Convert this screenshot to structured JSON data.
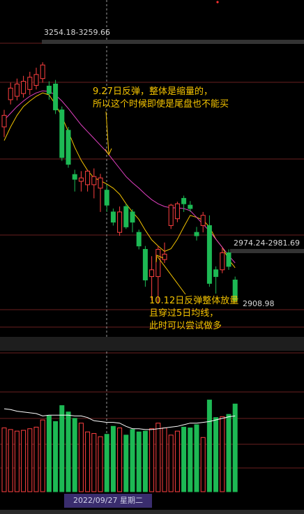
{
  "labels": {
    "high_range": "3254.18-3259.66",
    "right_range": "2974.24-2981.69",
    "low_value": "2908.98"
  },
  "annotations": {
    "a1_line1": "9.27日反弹，整体是缩量的，",
    "a1_line2": "所以这个时候即使是尾盘也不能买",
    "a2_line1": "10.12日反弹整体放量",
    "a2_line2": "且穿过5日均线，",
    "a2_line3": "此时可以尝试做多"
  },
  "crosshair_date": "2022/09/27 星期二",
  "colors": {
    "up": "#ff4040",
    "down": "#1db954",
    "ma5": "#f2c200",
    "ma10": "#e040c0",
    "vol_ma": "#ffffff",
    "grid": "#6a1f1f"
  },
  "chart_data": {
    "type": "candlestick",
    "y_axis": "price",
    "ylim": [
      2880,
      3290
    ],
    "candles": [
      {
        "o": 3165,
        "c": 3182,
        "h": 3190,
        "l": 3150
      },
      {
        "o": 3205,
        "c": 3222,
        "h": 3230,
        "l": 3198
      },
      {
        "o": 3210,
        "c": 3228,
        "h": 3236,
        "l": 3204
      },
      {
        "o": 3214,
        "c": 3232,
        "h": 3240,
        "l": 3208
      },
      {
        "o": 3220,
        "c": 3238,
        "h": 3246,
        "l": 3212
      },
      {
        "o": 3226,
        "c": 3242,
        "h": 3252,
        "l": 3220
      },
      {
        "o": 3236,
        "c": 3256,
        "h": 3260,
        "l": 3230
      },
      {
        "o": 3225,
        "c": 3214,
        "h": 3232,
        "l": 3205
      },
      {
        "o": 3228,
        "c": 3190,
        "h": 3234,
        "l": 3184
      },
      {
        "o": 3190,
        "c": 3120,
        "h": 3195,
        "l": 3115
      },
      {
        "o": 3160,
        "c": 3110,
        "h": 3165,
        "l": 3105
      },
      {
        "o": 3095,
        "c": 3088,
        "h": 3102,
        "l": 3070
      },
      {
        "o": 3085,
        "c": 3090,
        "h": 3100,
        "l": 3070
      },
      {
        "o": 3080,
        "c": 3100,
        "h": 3102,
        "l": 3070
      },
      {
        "o": 3080,
        "c": 3092,
        "h": 3104,
        "l": 3060
      },
      {
        "o": 3075,
        "c": 3090,
        "h": 3096,
        "l": 3040
      },
      {
        "o": 3072,
        "c": 3050,
        "h": 3080,
        "l": 3040
      },
      {
        "o": 3040,
        "c": 3025,
        "h": 3045,
        "l": 3020
      },
      {
        "o": 3010,
        "c": 3040,
        "h": 3048,
        "l": 3005
      },
      {
        "o": 3048,
        "c": 3018,
        "h": 3052,
        "l": 3015
      },
      {
        "o": 3040,
        "c": 3025,
        "h": 3044,
        "l": 3010
      },
      {
        "o": 3010,
        "c": 2990,
        "h": 3014,
        "l": 2985
      },
      {
        "o": 2985,
        "c": 2940,
        "h": 2990,
        "l": 2930
      },
      {
        "o": 2945,
        "c": 2955,
        "h": 2975,
        "l": 2910
      },
      {
        "o": 2945,
        "c": 2985,
        "h": 2990,
        "l": 2905
      },
      {
        "o": 2970,
        "c": 2978,
        "h": 2995,
        "l": 2965
      },
      {
        "o": 3020,
        "c": 3050,
        "h": 3052,
        "l": 3015
      },
      {
        "o": 3030,
        "c": 3052,
        "h": 3055,
        "l": 3025
      },
      {
        "o": 3060,
        "c": 3052,
        "h": 3064,
        "l": 3040
      },
      {
        "o": 3050,
        "c": 3045,
        "h": 3056,
        "l": 3040
      },
      {
        "o": 3010,
        "c": 3005,
        "h": 3018,
        "l": 2998
      },
      {
        "o": 3020,
        "c": 3035,
        "h": 3040,
        "l": 3010
      },
      {
        "o": 3020,
        "c": 2935,
        "h": 3035,
        "l": 2930
      },
      {
        "o": 2955,
        "c": 2945,
        "h": 2960,
        "l": 2920
      },
      {
        "o": 2955,
        "c": 2980,
        "h": 2988,
        "l": 2950
      },
      {
        "o": 2980,
        "c": 2960,
        "h": 2985,
        "l": 2955
      },
      {
        "o": 2940,
        "c": 2910,
        "h": 2945,
        "l": 2908
      }
    ],
    "ma5": [
      3145,
      3165,
      3182,
      3195,
      3203,
      3210,
      3215,
      3212,
      3198,
      3180,
      3158,
      3135,
      3116,
      3101,
      3090,
      3086,
      3081,
      3075,
      3066,
      3052,
      3040,
      3029,
      3013,
      2999,
      2990,
      2982,
      2986,
      3000,
      3018,
      3035,
      3032,
      3028,
      3018,
      3000,
      2988,
      2970,
      2958
    ],
    "ma10": [
      3175,
      3185,
      3195,
      3203,
      3210,
      3215,
      3218,
      3217,
      3212,
      3203,
      3192,
      3180,
      3168,
      3158,
      3148,
      3138,
      3128,
      3116,
      3104,
      3092,
      3083,
      3075,
      3066,
      3058,
      3052,
      3048,
      3046,
      3046,
      3045,
      3042,
      3032,
      3022,
      3012,
      3000,
      2988,
      2976,
      2965
    ],
    "volumes": [
      80,
      78,
      76,
      77,
      79,
      81,
      90,
      95,
      88,
      108,
      100,
      92,
      86,
      75,
      73,
      69,
      72,
      82,
      80,
      71,
      78,
      75,
      76,
      79,
      86,
      80,
      71,
      76,
      81,
      80,
      84,
      68,
      115,
      93,
      94,
      97,
      110
    ],
    "vol_ma": [
      104,
      103,
      101,
      100,
      99,
      98,
      95,
      96,
      96,
      96,
      96,
      95,
      95,
      93,
      89,
      88,
      87,
      87,
      86,
      82,
      79,
      79,
      78,
      78,
      79,
      80,
      81,
      82,
      84,
      86,
      86,
      87,
      88,
      90,
      92,
      94,
      95
    ],
    "vol_ylim": [
      0,
      140
    ]
  }
}
